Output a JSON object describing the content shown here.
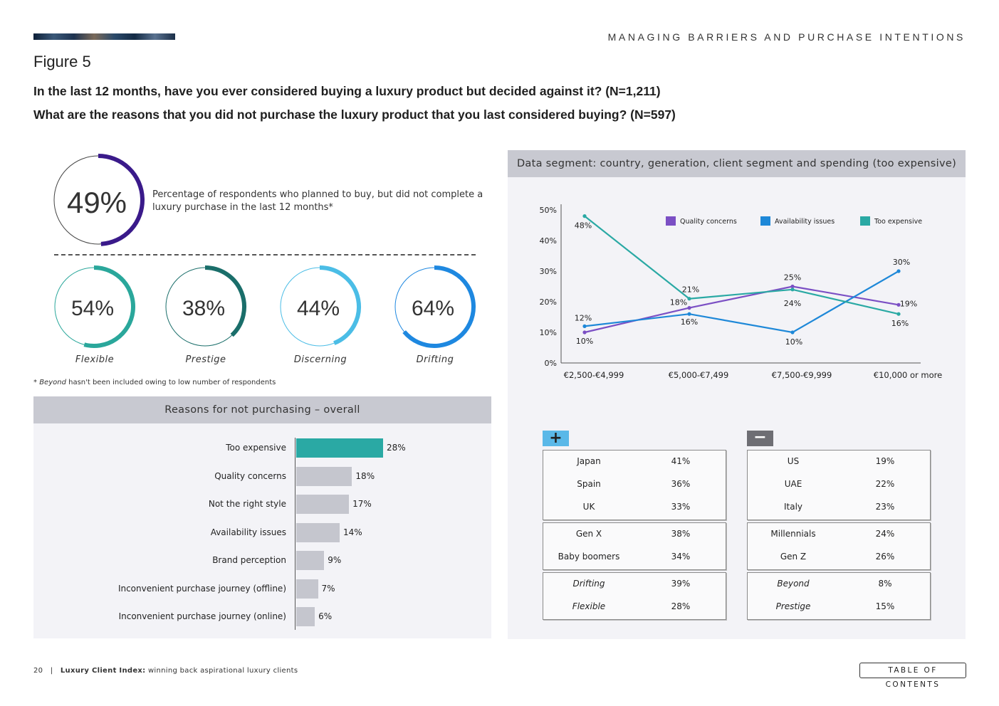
{
  "header": {
    "section_title": "MANAGING BARRIERS AND PURCHASE INTENTIONS",
    "figure_label": "Figure 5",
    "question_1": "In the last 12 months, have you ever considered buying a luxury product but decided against it? (N=1,211)",
    "question_2": "What are the reasons that you did not purchase the luxury product that you last considered buying? (N=597)"
  },
  "overall": {
    "value": "49%",
    "fraction": 0.49,
    "color": "#3a1a8a",
    "description": "Percentage of respondents who planned to buy, but did not complete a luxury purchase in the last 12 months*"
  },
  "segments": [
    {
      "label": "Flexible",
      "value": "54%",
      "fraction": 0.54,
      "color": "#2aa79b"
    },
    {
      "label": "Prestige",
      "value": "38%",
      "fraction": 0.38,
      "color": "#1a6e6a"
    },
    {
      "label": "Discerning",
      "value": "44%",
      "fraction": 0.44,
      "color": "#4bbde6"
    },
    {
      "label": "Drifting",
      "value": "64%",
      "fraction": 0.64,
      "color": "#1e88e0"
    }
  ],
  "footnote_italic": "Beyond",
  "footnote_rest": " hasn't been included owing to low number of respondents",
  "reasons": {
    "title": "Reasons for not purchasing – overall",
    "items": [
      {
        "label": "Too expensive",
        "value": 28,
        "text": "28%",
        "color": "#2aa9a4"
      },
      {
        "label": "Quality concerns",
        "value": 18,
        "text": "18%",
        "color": "#c5c6ce"
      },
      {
        "label": "Not the right style",
        "value": 17,
        "text": "17%",
        "color": "#c5c6ce"
      },
      {
        "label": "Availability issues",
        "value": 14,
        "text": "14%",
        "color": "#c5c6ce"
      },
      {
        "label": "Brand perception",
        "value": 9,
        "text": "9%",
        "color": "#c5c6ce"
      },
      {
        "label": "Inconvenient purchase journey (offline)",
        "value": 7,
        "text": "7%",
        "color": "#c5c6ce"
      },
      {
        "label": "Inconvenient purchase journey (online)",
        "value": 6,
        "text": "6%",
        "color": "#c5c6ce"
      }
    ]
  },
  "segment_panel": {
    "title": "Data segment: country, generation, client segment and spending (too expensive)"
  },
  "chart_data": [
    {
      "type": "line",
      "title": "",
      "xlabel": "",
      "ylabel": "",
      "categories": [
        "€2,500-€4,999",
        "€5,000-€7,499",
        "€7,500-€9,999",
        "€10,000 or more"
      ],
      "ylim": [
        0,
        50
      ],
      "yticks": [
        "0%",
        "10%",
        "20%",
        "30%",
        "40%",
        "50%"
      ],
      "legend_position": "top-right",
      "series": [
        {
          "name": "Quality concerns",
          "color": "#7b4fc4",
          "values": [
            10,
            18,
            25,
            19
          ],
          "labels": [
            "10%",
            "18%",
            "25%",
            "19%"
          ]
        },
        {
          "name": "Availability issues",
          "color": "#1e88d8",
          "values": [
            12,
            16,
            10,
            30
          ],
          "labels": [
            "12%",
            "16%",
            "10%",
            "30%"
          ]
        },
        {
          "name": "Too expensive",
          "color": "#2aa9a4",
          "values": [
            48,
            21,
            24,
            16
          ],
          "labels": [
            "48%",
            "21%",
            "24%",
            "16%"
          ]
        }
      ]
    },
    {
      "type": "bar",
      "title": "Reasons for not purchasing – overall",
      "categories": [
        "Too expensive",
        "Quality concerns",
        "Not the right style",
        "Availability issues",
        "Brand perception",
        "Inconvenient purchase journey (offline)",
        "Inconvenient purchase journey (online)"
      ],
      "values": [
        28,
        18,
        17,
        14,
        9,
        7,
        6
      ],
      "xlabel": "",
      "ylabel": ""
    }
  ],
  "plus_label": "+",
  "minus_label": "−",
  "plus_color": "#5ab8e8",
  "minus_color": "#6e6e74",
  "plus_tables": [
    {
      "italic": false,
      "rows": [
        {
          "name": "Japan",
          "value": "41%"
        },
        {
          "name": "Spain",
          "value": "36%"
        },
        {
          "name": "UK",
          "value": "33%"
        }
      ]
    },
    {
      "italic": false,
      "rows": [
        {
          "name": "Gen X",
          "value": "38%"
        },
        {
          "name": "Baby boomers",
          "value": "34%"
        }
      ]
    },
    {
      "italic": true,
      "rows": [
        {
          "name": "Drifting",
          "value": "39%"
        },
        {
          "name": "Flexible",
          "value": "28%"
        }
      ]
    }
  ],
  "minus_tables": [
    {
      "italic": false,
      "rows": [
        {
          "name": "US",
          "value": "19%"
        },
        {
          "name": "UAE",
          "value": "22%"
        },
        {
          "name": "Italy",
          "value": "23%"
        }
      ]
    },
    {
      "italic": false,
      "rows": [
        {
          "name": "Millennials",
          "value": "24%"
        },
        {
          "name": "Gen Z",
          "value": "26%"
        }
      ]
    },
    {
      "italic": true,
      "rows": [
        {
          "name": "Beyond",
          "value": "8%"
        },
        {
          "name": "Prestige",
          "value": "15%"
        }
      ]
    }
  ],
  "footer": {
    "page_number": "20",
    "separator": "|",
    "report_title": "Luxury Client Index:",
    "report_subtitle": " winning back aspirational luxury clients",
    "toc_label": "TABLE OF CONTENTS"
  }
}
